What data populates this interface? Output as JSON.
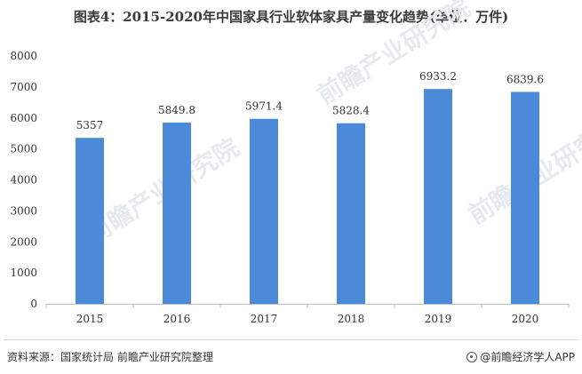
{
  "title": "图表4：2015-2020年中国家具行业软体家具产量变化趋势(单位：万件)",
  "watermark_text": "前瞻产业研究院",
  "footer": {
    "source": "资料来源：国家统计局 前瞻产业研究院整理",
    "brand": "@前瞻经济学人APP"
  },
  "colors": {
    "bar": "#4a8ad9",
    "axis": "#bfbfbf",
    "text": "#333333"
  },
  "chart_data": {
    "type": "bar",
    "categories": [
      "2015",
      "2016",
      "2017",
      "2018",
      "2019",
      "2020"
    ],
    "values": [
      5357,
      5849.8,
      5971.4,
      5828.4,
      6933.2,
      6839.6
    ],
    "value_labels": [
      "5357",
      "5849.8",
      "5971.4",
      "5828.4",
      "6933.2",
      "6839.6"
    ],
    "y_ticks": [
      "0",
      "1000",
      "2000",
      "3000",
      "4000",
      "5000",
      "6000",
      "7000",
      "8000"
    ],
    "ylim": [
      0,
      8000
    ],
    "grid": false,
    "legend": "none"
  }
}
